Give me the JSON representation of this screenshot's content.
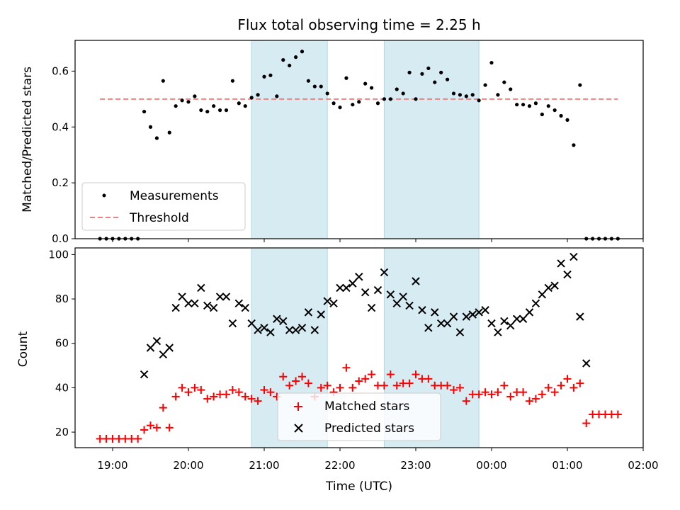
{
  "colors": {
    "measurement": "#000000",
    "threshold": "#f08080",
    "matched": "#ff0000",
    "predicted": "#000000",
    "shade": "#add8e6"
  },
  "chart_data": [
    {
      "type": "scatter",
      "title": "Flux total observing time = 2.25 h",
      "xlabel": "",
      "ylabel": "Matched/Predicted stars",
      "ylim": [
        0,
        0.71
      ],
      "yticks": [
        "0.0",
        "0.2",
        "0.4",
        "0.6"
      ],
      "grid": false,
      "legend_position": "lower-left",
      "shaded_intervals": [
        [
          "20:50",
          "21:50"
        ],
        [
          "22:35",
          "23:50"
        ]
      ],
      "series": [
        {
          "name": "Measurements",
          "marker": "dot",
          "x": [
            "18:50",
            "18:55",
            "19:00",
            "19:05",
            "19:10",
            "19:15",
            "19:20",
            "19:25",
            "19:30",
            "19:35",
            "19:40",
            "19:45",
            "19:50",
            "19:55",
            "20:00",
            "20:05",
            "20:10",
            "20:15",
            "20:20",
            "20:25",
            "20:30",
            "20:35",
            "20:40",
            "20:45",
            "20:50",
            "20:55",
            "21:00",
            "21:05",
            "21:10",
            "21:15",
            "21:20",
            "21:25",
            "21:30",
            "21:35",
            "21:40",
            "21:45",
            "21:50",
            "21:55",
            "22:00",
            "22:05",
            "22:10",
            "22:15",
            "22:20",
            "22:25",
            "22:30",
            "22:35",
            "22:40",
            "22:45",
            "22:50",
            "22:55",
            "23:00",
            "23:05",
            "23:10",
            "23:15",
            "23:20",
            "23:25",
            "23:30",
            "23:35",
            "23:40",
            "23:45",
            "23:50",
            "23:55",
            "00:00",
            "00:05",
            "00:10",
            "00:15",
            "00:20",
            "00:25",
            "00:30",
            "00:35",
            "00:40",
            "00:45",
            "00:50",
            "00:55",
            "01:00",
            "01:05",
            "01:10",
            "01:15",
            "01:20",
            "01:25",
            "01:30",
            "01:35",
            "01:40"
          ],
          "y": [
            0.0,
            0.0,
            0.0,
            0.0,
            0.0,
            0.0,
            0.0,
            0.455,
            0.4,
            0.36,
            0.565,
            0.38,
            0.475,
            0.495,
            0.49,
            0.51,
            0.46,
            0.455,
            0.475,
            0.46,
            0.46,
            0.565,
            0.485,
            0.475,
            0.505,
            0.515,
            0.58,
            0.585,
            0.51,
            0.64,
            0.62,
            0.65,
            0.67,
            0.565,
            0.545,
            0.545,
            0.52,
            0.485,
            0.47,
            0.575,
            0.48,
            0.49,
            0.555,
            0.54,
            0.485,
            0.5,
            0.5,
            0.535,
            0.52,
            0.595,
            0.5,
            0.59,
            0.61,
            0.56,
            0.595,
            0.57,
            0.52,
            0.515,
            0.51,
            0.515,
            0.495,
            0.55,
            0.63,
            0.515,
            0.56,
            0.535,
            0.48,
            0.48,
            0.475,
            0.485,
            0.445,
            0.475,
            0.46,
            0.44,
            0.425,
            0.335,
            0.55,
            0.0,
            0.0,
            0.0,
            0.0,
            0.0,
            0.0
          ]
        },
        {
          "name": "Threshold",
          "marker": "dashed-line",
          "x": [
            "18:50",
            "01:40"
          ],
          "y": [
            0.5,
            0.5
          ]
        }
      ]
    },
    {
      "type": "scatter",
      "title": "",
      "xlabel": "Time (UTC)",
      "ylabel": "Count",
      "ylim": [
        13,
        103
      ],
      "yticks": [
        "20",
        "40",
        "60",
        "80",
        "100"
      ],
      "xticks": [
        "19:00",
        "20:00",
        "21:00",
        "22:00",
        "23:00",
        "00:00",
        "01:00",
        "02:00"
      ],
      "grid": false,
      "legend_position": "lower-center",
      "shaded_intervals": [
        [
          "20:50",
          "21:50"
        ],
        [
          "22:35",
          "23:50"
        ]
      ],
      "series": [
        {
          "name": "Matched stars",
          "marker": "plus",
          "x": [
            "18:50",
            "18:55",
            "19:00",
            "19:05",
            "19:10",
            "19:15",
            "19:20",
            "19:25",
            "19:30",
            "19:35",
            "19:40",
            "19:45",
            "19:50",
            "19:55",
            "20:00",
            "20:05",
            "20:10",
            "20:15",
            "20:20",
            "20:25",
            "20:30",
            "20:35",
            "20:40",
            "20:45",
            "20:50",
            "20:55",
            "21:00",
            "21:05",
            "21:10",
            "21:15",
            "21:20",
            "21:25",
            "21:30",
            "21:35",
            "21:40",
            "21:45",
            "21:50",
            "21:55",
            "22:00",
            "22:05",
            "22:10",
            "22:15",
            "22:20",
            "22:25",
            "22:30",
            "22:35",
            "22:40",
            "22:45",
            "22:50",
            "22:55",
            "23:00",
            "23:05",
            "23:10",
            "23:15",
            "23:20",
            "23:25",
            "23:30",
            "23:35",
            "23:40",
            "23:45",
            "23:50",
            "23:55",
            "00:00",
            "00:05",
            "00:10",
            "00:15",
            "00:20",
            "00:25",
            "00:30",
            "00:35",
            "00:40",
            "00:45",
            "00:50",
            "00:55",
            "01:00",
            "01:05",
            "01:10",
            "01:15",
            "01:20",
            "01:25",
            "01:30",
            "01:35",
            "01:40"
          ],
          "y": [
            17,
            17,
            17,
            17,
            17,
            17,
            17,
            21,
            23,
            22,
            31,
            22,
            36,
            40,
            38,
            40,
            39,
            35,
            36,
            37,
            37,
            39,
            38,
            36,
            35,
            34,
            39,
            38,
            36,
            45,
            41,
            43,
            45,
            42,
            36,
            40,
            41,
            38,
            40,
            49,
            40,
            43,
            44,
            46,
            41,
            41,
            46,
            41,
            42,
            42,
            46,
            44,
            44,
            41,
            41,
            41,
            39,
            40,
            34,
            37,
            37,
            38,
            37,
            38,
            41,
            36,
            38,
            38,
            34,
            35,
            37,
            40,
            38,
            41,
            44,
            40,
            42,
            24,
            28,
            28,
            28,
            28,
            28
          ]
        },
        {
          "name": "Predicted stars",
          "marker": "x",
          "x": [
            "19:25",
            "19:30",
            "19:35",
            "19:40",
            "19:45",
            "19:50",
            "19:55",
            "20:00",
            "20:05",
            "20:10",
            "20:15",
            "20:20",
            "20:25",
            "20:30",
            "20:35",
            "20:40",
            "20:45",
            "20:50",
            "20:55",
            "21:00",
            "21:05",
            "21:10",
            "21:15",
            "21:20",
            "21:25",
            "21:30",
            "21:35",
            "21:40",
            "21:45",
            "21:50",
            "21:55",
            "22:00",
            "22:05",
            "22:10",
            "22:15",
            "22:20",
            "22:25",
            "22:30",
            "22:35",
            "22:40",
            "22:45",
            "22:50",
            "22:55",
            "23:00",
            "23:05",
            "23:10",
            "23:15",
            "23:20",
            "23:25",
            "23:30",
            "23:35",
            "23:40",
            "23:45",
            "23:50",
            "23:55",
            "00:00",
            "00:05",
            "00:10",
            "00:15",
            "00:20",
            "00:25",
            "00:30",
            "00:35",
            "00:40",
            "00:45",
            "00:50",
            "00:55",
            "01:00",
            "01:05",
            "01:10",
            "01:15"
          ],
          "y": [
            46,
            58,
            61,
            55,
            58,
            76,
            81,
            78,
            78,
            85,
            77,
            76,
            81,
            81,
            69,
            78,
            76,
            69,
            66,
            67,
            65,
            71,
            70,
            66,
            66,
            67,
            74,
            66,
            73,
            79,
            78,
            85,
            85,
            87,
            90,
            83,
            76,
            84,
            92,
            82,
            78,
            81,
            77,
            88,
            75,
            67,
            74,
            69,
            69,
            72,
            65,
            72,
            73,
            74,
            75,
            69,
            65,
            70,
            68,
            71,
            71,
            74,
            78,
            82,
            85,
            86,
            96,
            91,
            99,
            72,
            51
          ]
        }
      ]
    }
  ]
}
